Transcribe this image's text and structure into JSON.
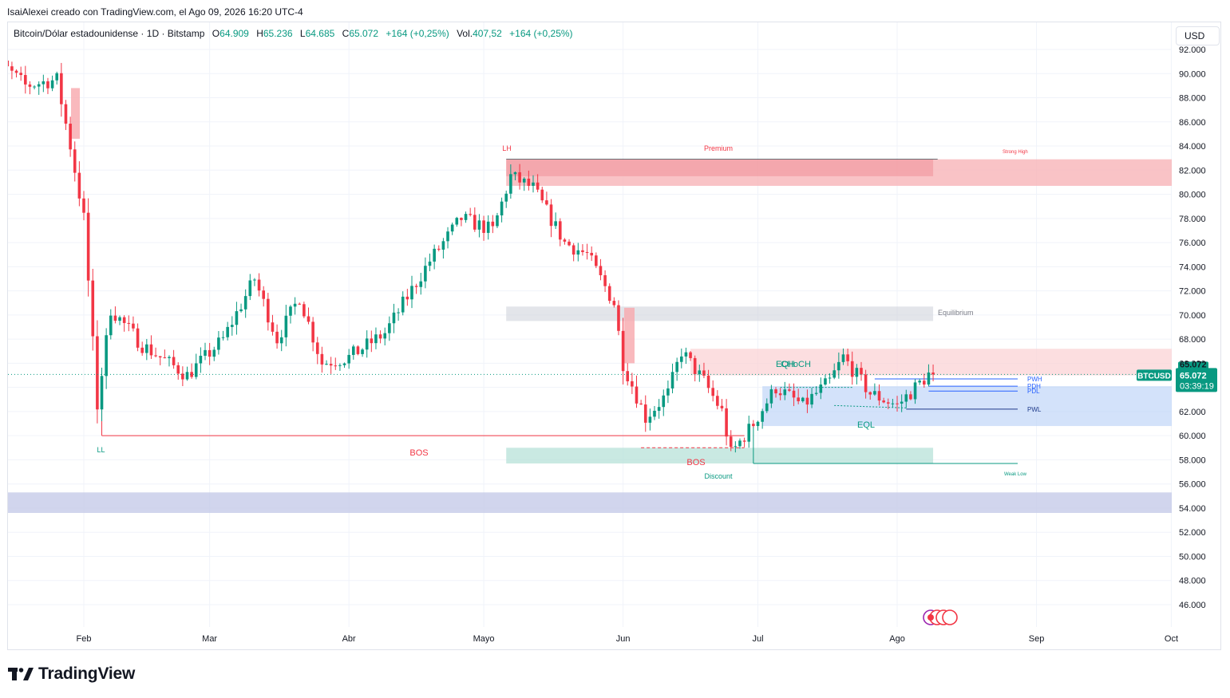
{
  "caption": "IsaiAlexei creado con TradingView.com, el Ago 09, 2026 16:20 UTC-4",
  "legend": {
    "symbol": "Bitcoin/Dólar estadounidense · 1D · Bitstamp",
    "open_label": "O",
    "open": "64.909",
    "high_label": "H",
    "high": "65.236",
    "low_label": "L",
    "low": "64.685",
    "close_label": "C",
    "close": "65.072",
    "change": "+164 (+0,25%)",
    "vol_label": "Vol.",
    "vol": "407,52",
    "vol_change": "+164 (+0,25%)"
  },
  "currency_button": "USD",
  "price_tag": {
    "symbol": "BTCUSD",
    "price": "65.072",
    "countdown": "03:39:19"
  },
  "footer": {
    "brand": "TradingView",
    "logo_icon": "tradingview-logo-icon"
  },
  "colors": {
    "up": "#089981",
    "down": "#f23645",
    "premium_zone": "#f7b4b8",
    "discount_zone": "#b2dfd5",
    "equilibrium_zone": "#d1d4dc",
    "fvg_blue": "#bbd2f8",
    "range_blue": "#c9daf8",
    "band_indigo": "#c5cae9"
  },
  "chart_data": {
    "type": "candlestick",
    "symbol": "BTCUSD",
    "x_ticks": [
      "Feb",
      "Mar",
      "Abr",
      "Mayo",
      "Jun",
      "Jul",
      "Ago",
      "Sep",
      "Oct"
    ],
    "y_ticks": [
      "92.000",
      "90.000",
      "88.000",
      "86.000",
      "84.000",
      "82.000",
      "80.000",
      "78.000",
      "76.000",
      "74.000",
      "72.000",
      "70.000",
      "68.000",
      "66.000",
      "64.000",
      "62.000",
      "60.000",
      "58.000",
      "56.000",
      "54.000",
      "52.000",
      "50.000",
      "48.000",
      "46.000"
    ],
    "ylim": [
      44500,
      92700
    ],
    "grid": true,
    "waypoints": [
      [
        "2026-01-10",
        93500
      ],
      [
        "2026-01-14",
        91000
      ],
      [
        "2026-01-20",
        89000
      ],
      [
        "2026-01-27",
        89500
      ],
      [
        "2026-01-30",
        84000
      ],
      [
        "2026-02-02",
        78000
      ],
      [
        "2026-02-05",
        62500
      ],
      [
        "2026-02-08",
        70500
      ],
      [
        "2026-02-15",
        67500
      ],
      [
        "2026-02-25",
        65000
      ],
      [
        "2026-03-05",
        68000
      ],
      [
        "2026-03-12",
        73000
      ],
      [
        "2026-03-17",
        68000
      ],
      [
        "2026-03-22",
        71500
      ],
      [
        "2026-03-27",
        66000
      ],
      [
        "2026-04-02",
        66500
      ],
      [
        "2026-04-10",
        68500
      ],
      [
        "2026-04-20",
        74500
      ],
      [
        "2026-04-27",
        78000
      ],
      [
        "2026-05-04",
        77000
      ],
      [
        "2026-05-08",
        81500
      ],
      [
        "2026-05-13",
        80500
      ],
      [
        "2026-05-20",
        76000
      ],
      [
        "2026-05-25",
        75000
      ],
      [
        "2026-05-31",
        71000
      ],
      [
        "2026-06-02",
        66000
      ],
      [
        "2026-06-07",
        61500
      ],
      [
        "2026-06-12",
        63500
      ],
      [
        "2026-06-15",
        67000
      ],
      [
        "2026-06-20",
        64500
      ],
      [
        "2026-06-24",
        62000
      ],
      [
        "2026-06-26",
        58500
      ],
      [
        "2026-07-01",
        61000
      ],
      [
        "2026-07-06",
        64000
      ],
      [
        "2026-07-12",
        62500
      ],
      [
        "2026-07-18",
        64500
      ],
      [
        "2026-07-21",
        66500
      ],
      [
        "2026-07-27",
        63500
      ],
      [
        "2026-08-02",
        62500
      ],
      [
        "2026-08-09",
        65072
      ]
    ],
    "zones": [
      {
        "name": "Premium",
        "color_key": "premium_zone"
      },
      {
        "name": "Equilibrium",
        "color_key": "equilibrium_zone"
      },
      {
        "name": "Discount",
        "color_key": "discount_zone"
      }
    ],
    "levels": [
      {
        "label": "Strong High",
        "price": 82900
      },
      {
        "label": "Weak Low",
        "price": 57700
      },
      {
        "label": "PWH",
        "price": 64700
      },
      {
        "label": "PDH",
        "price": 64100
      },
      {
        "label": "PDL",
        "price": 63700
      },
      {
        "label": "PWL",
        "price": 62200
      }
    ],
    "annotations": [
      {
        "text": "LH"
      },
      {
        "text": "LL"
      },
      {
        "text": "BOS"
      },
      {
        "text": "BOS"
      },
      {
        "text": "CHoCH"
      },
      {
        "text": "EQH"
      },
      {
        "text": "EQL"
      }
    ]
  }
}
